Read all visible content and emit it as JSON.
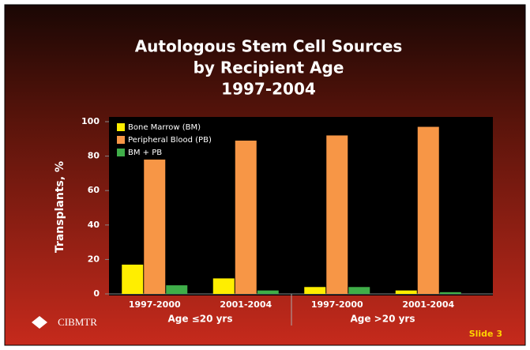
{
  "chart_data": {
    "type": "bar",
    "title": [
      "Autologous Stem Cell Sources",
      "by Recipient Age",
      "1997-2004"
    ],
    "y_label": "Transplants, %",
    "categories": [
      "1997-2000",
      "2001-2004",
      "1997-2000",
      "2001-2004"
    ],
    "category_groups": [
      "Age ≤20 yrs",
      "Age >20 yrs"
    ],
    "series": [
      {
        "name": "Bone Marrow (BM)",
        "color": "#ffee00",
        "values": [
          17,
          9,
          4,
          2
        ]
      },
      {
        "name": "Peripheral Blood (PB)",
        "color": "#f79646",
        "values": [
          78,
          89,
          92,
          97
        ]
      },
      {
        "name": "BM + PB",
        "color": "#3fae49",
        "values": [
          5,
          2,
          4,
          1
        ]
      }
    ],
    "ylim": [
      0,
      100
    ],
    "yticks": [
      0,
      20,
      40,
      60,
      80,
      100
    ],
    "legend": "top-left"
  },
  "footer": {
    "logo": "CIBMTR",
    "slide": "Slide 3"
  }
}
